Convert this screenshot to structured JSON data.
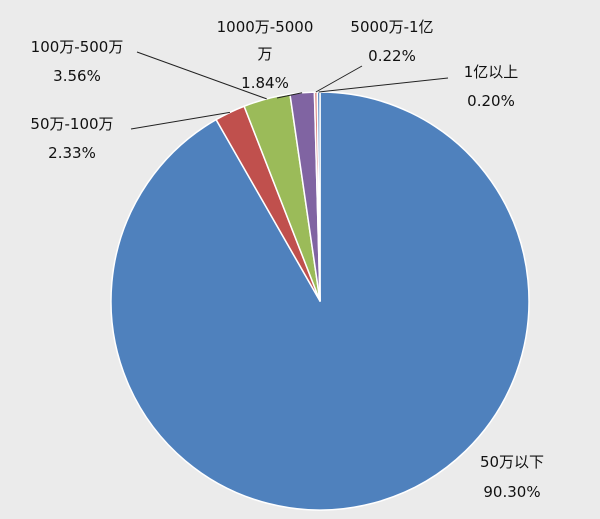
{
  "chart_data": {
    "type": "pie",
    "title": "",
    "start_angle_deg": 0,
    "direction": "clockwise",
    "legend": "none",
    "slices": [
      {
        "category": "50万以下",
        "value": 90.3,
        "label_value": "90.30%",
        "color": "#4f81bd"
      },
      {
        "category": "50万-100万",
        "value": 2.33,
        "label_value": "2.33%",
        "color": "#c0504d"
      },
      {
        "category": "100万-500万",
        "value": 3.56,
        "label_value": "3.56%",
        "color": "#9bbb59"
      },
      {
        "category": "1000万-5000万",
        "value": 1.84,
        "label_value": "1.84%",
        "color": "#8064a2"
      },
      {
        "category": "5000万-1亿",
        "value": 0.22,
        "label_value": "0.22%",
        "color": "#d9847f"
      },
      {
        "category": "1亿以上",
        "value": 0.2,
        "label_value": "0.20%",
        "color": "#4f81bd"
      }
    ],
    "label_text": {
      "s0_cat": "50万以下",
      "s1_cat": "50万-100万",
      "s2_cat": "100万-500万",
      "s3_cat_line1": "1000万-5000",
      "s3_cat_line2": "万",
      "s4_cat": "5000万-1亿",
      "s5_cat": "1亿以上"
    }
  }
}
